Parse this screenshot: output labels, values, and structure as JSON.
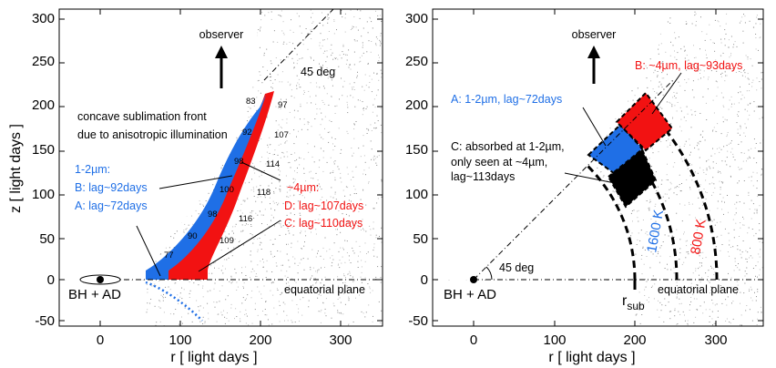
{
  "left_panel": {
    "xlabel": "r  [ light days ]",
    "ylabel": "z  [ light days ]",
    "xticks": [
      "0",
      "100",
      "200",
      "300"
    ],
    "yticks": [
      "-50",
      "0",
      "50",
      "100",
      "150",
      "200",
      "250",
      "300"
    ],
    "observer": "observer",
    "angle_label": "45 deg",
    "concave_text": [
      "concave sublimation front",
      "due to anisotropic illumination"
    ],
    "blue_heading": "1-2µm:",
    "blue_b": "B: lag~92days",
    "blue_a": "A: lag~72days",
    "red_heading": "~4µm:",
    "red_d": "D: lag~107days",
    "red_c": "C: lag~110days",
    "bh_label": "BH + AD",
    "equatorial": "equatorial plane",
    "lags": [
      "83",
      "97",
      "92",
      "107",
      "98",
      "114",
      "100",
      "118",
      "98",
      "116",
      "90",
      "109",
      "77"
    ]
  },
  "right_panel": {
    "xlabel": "r  [ light days ]",
    "xticks": [
      "0",
      "100",
      "200",
      "300"
    ],
    "yticks": [
      "-50",
      "0",
      "50",
      "100",
      "150",
      "200",
      "250",
      "300"
    ],
    "observer": "observer",
    "angle_label": "45 deg",
    "label_a": "A: 1-2µm, lag~72days",
    "label_b": "B: ~4µm, lag~93days",
    "label_c": [
      "C: absorbed at 1-2µm,",
      "only seen at ~4µm,",
      "lag~113days"
    ],
    "temp_1600": "1600 K",
    "temp_800": "800 K",
    "bh_label": "BH + AD",
    "equatorial": "equatorial plane",
    "r_sub": "r",
    "r_sub_subscript": "sub"
  },
  "colors": {
    "blue": "#1f6fe6",
    "red": "#f21212",
    "black": "#000000"
  }
}
